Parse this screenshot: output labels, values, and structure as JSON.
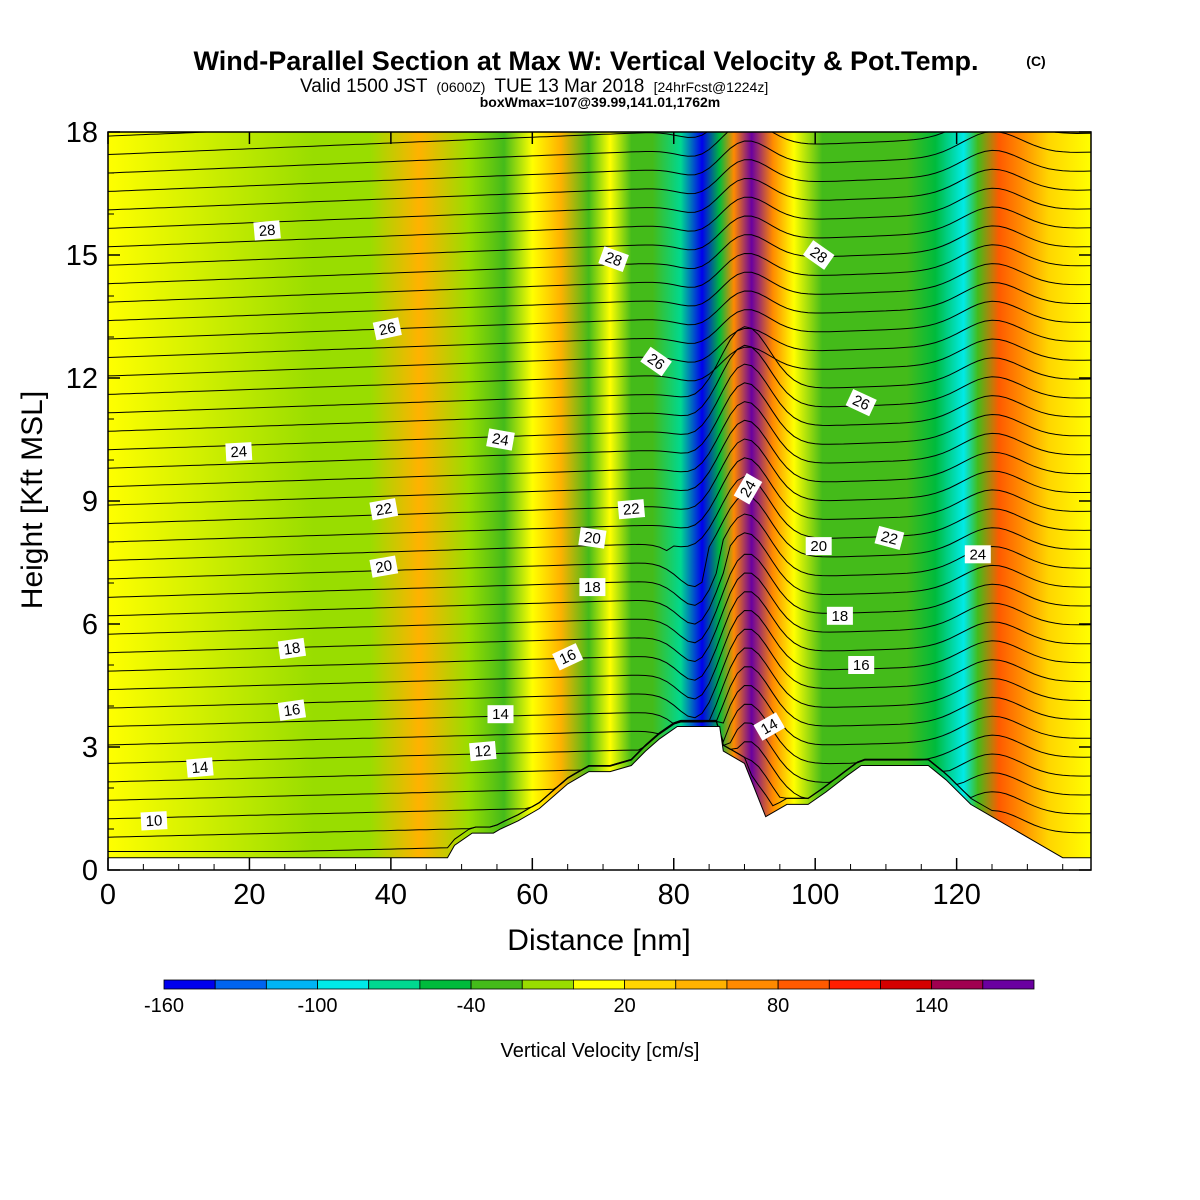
{
  "header": {
    "title": "Wind-Parallel Section at Max W: Vertical Velocity & Pot.Temp.",
    "copyright": "(C)",
    "valid_prefix": "Valid 1500 JST",
    "valid_zulu": "(0600Z)",
    "valid_date": "TUE 13 Mar 2018",
    "forecast": "[24hrFcst@1224z]",
    "boxwmax": "boxWmax=107@39.99,141.01,1762m"
  },
  "chart_data": {
    "type": "heatmap",
    "xlabel": "Distance [nm]",
    "ylabel": "Height [Kft MSL]",
    "xlim": [
      0,
      139
    ],
    "ylim": [
      0,
      18
    ],
    "x_ticks": [
      0,
      20,
      40,
      60,
      80,
      100,
      120
    ],
    "y_ticks": [
      0,
      3,
      6,
      9,
      12,
      15,
      18
    ],
    "x_tick_labels": [
      "0",
      "20",
      "40",
      "60",
      "80",
      "100",
      "120"
    ],
    "y_tick_labels": [
      "0",
      "3",
      "6",
      "9",
      "12",
      "15",
      "18"
    ],
    "grid": false,
    "colorbar": {
      "label": "Vertical Velocity [cm/s]",
      "tick_labels": [
        "-160",
        "-100",
        "-40",
        "20",
        "80",
        "140"
      ],
      "tick_values": [
        -160,
        -100,
        -40,
        20,
        80,
        140
      ],
      "min": -160,
      "max": 180,
      "step": 20,
      "colors": [
        "#0000ee",
        "#0064f0",
        "#00b4f5",
        "#00eae8",
        "#00d890",
        "#00bb3c",
        "#44bb1a",
        "#99dd00",
        "#ffff00",
        "#ffd500",
        "#ffb200",
        "#ff8a00",
        "#ff5a00",
        "#ff1e00",
        "#d40000",
        "#a00050",
        "#6a00a0"
      ]
    },
    "vertical_velocity_bands": [
      {
        "x": 0,
        "w": 10
      },
      {
        "x": 29,
        "w": -20
      },
      {
        "x": 37,
        "w": -10
      },
      {
        "x": 44,
        "w": 40
      },
      {
        "x": 51,
        "w": -10
      },
      {
        "x": 56,
        "w": -30
      },
      {
        "x": 60,
        "w": 0
      },
      {
        "x": 64,
        "w": 40
      },
      {
        "x": 68,
        "w": -30
      },
      {
        "x": 71,
        "w": 10
      },
      {
        "x": 74,
        "w": -25
      },
      {
        "x": 77,
        "w": -40
      },
      {
        "x": 81,
        "w": -80
      },
      {
        "x": 84,
        "w": -150
      },
      {
        "x": 86.5,
        "w": -60
      },
      {
        "x": 88.5,
        "w": 60
      },
      {
        "x": 91,
        "w": 160
      },
      {
        "x": 94,
        "w": 60
      },
      {
        "x": 97,
        "w": 0
      },
      {
        "x": 101,
        "w": -35
      },
      {
        "x": 107,
        "w": -25
      },
      {
        "x": 113,
        "w": -30
      },
      {
        "x": 117,
        "w": -45
      },
      {
        "x": 121,
        "w": -90
      },
      {
        "x": 123,
        "w": -40
      },
      {
        "x": 126,
        "w": 90
      },
      {
        "x": 129,
        "w": 60
      },
      {
        "x": 133,
        "w": 30
      },
      {
        "x": 139,
        "w": 10
      }
    ],
    "terrain": [
      {
        "x": 0,
        "h": 0.3
      },
      {
        "x": 48,
        "h": 0.3
      },
      {
        "x": 49,
        "h": 0.6
      },
      {
        "x": 51.5,
        "h": 0.9
      },
      {
        "x": 54.5,
        "h": 0.9
      },
      {
        "x": 55.5,
        "h": 1.0
      },
      {
        "x": 58,
        "h": 1.2
      },
      {
        "x": 61,
        "h": 1.5
      },
      {
        "x": 63,
        "h": 1.8
      },
      {
        "x": 65,
        "h": 2.1
      },
      {
        "x": 68,
        "h": 2.4
      },
      {
        "x": 71,
        "h": 2.4
      },
      {
        "x": 74,
        "h": 2.55
      },
      {
        "x": 76,
        "h": 2.9
      },
      {
        "x": 78,
        "h": 3.2
      },
      {
        "x": 80.5,
        "h": 3.5
      },
      {
        "x": 86.5,
        "h": 3.5
      },
      {
        "x": 87,
        "h": 2.9
      },
      {
        "x": 90,
        "h": 2.6
      },
      {
        "x": 93,
        "h": 1.3
      },
      {
        "x": 96,
        "h": 1.6
      },
      {
        "x": 99,
        "h": 1.6
      },
      {
        "x": 101.5,
        "h": 1.9
      },
      {
        "x": 104.5,
        "h": 2.3
      },
      {
        "x": 106.5,
        "h": 2.55
      },
      {
        "x": 116,
        "h": 2.55
      },
      {
        "x": 118.5,
        "h": 2.2
      },
      {
        "x": 122,
        "h": 1.6
      },
      {
        "x": 125,
        "h": 1.3
      },
      {
        "x": 128,
        "h": 1.0
      },
      {
        "x": 132,
        "h": 0.6
      },
      {
        "x": 135,
        "h": 0.3
      },
      {
        "x": 139,
        "h": 0.3
      }
    ],
    "contour_labels": [
      {
        "text": "28",
        "x": 22.5,
        "y": 15.6,
        "angle": -5
      },
      {
        "text": "28",
        "x": 71.5,
        "y": 14.9,
        "angle": 20
      },
      {
        "text": "28",
        "x": 100.5,
        "y": 15.0,
        "angle": 35
      },
      {
        "text": "26",
        "x": 39.5,
        "y": 13.2,
        "angle": -12
      },
      {
        "text": "26",
        "x": 77.5,
        "y": 12.4,
        "angle": 35
      },
      {
        "text": "26",
        "x": 106.5,
        "y": 11.4,
        "angle": 25
      },
      {
        "text": "24",
        "x": 18.5,
        "y": 10.2,
        "angle": -3
      },
      {
        "text": "24",
        "x": 55.5,
        "y": 10.5,
        "angle": 10
      },
      {
        "text": "24",
        "x": 90.5,
        "y": 9.3,
        "angle": -60
      },
      {
        "text": "24",
        "x": 123,
        "y": 7.7,
        "angle": 0
      },
      {
        "text": "22",
        "x": 39,
        "y": 8.8,
        "angle": -10
      },
      {
        "text": "22",
        "x": 74,
        "y": 8.8,
        "angle": -5
      },
      {
        "text": "22",
        "x": 110.5,
        "y": 8.1,
        "angle": 15
      },
      {
        "text": "20",
        "x": 39,
        "y": 7.4,
        "angle": -10
      },
      {
        "text": "20",
        "x": 68.5,
        "y": 8.1,
        "angle": 8
      },
      {
        "text": "20",
        "x": 100.5,
        "y": 7.9,
        "angle": 0
      },
      {
        "text": "18",
        "x": 26,
        "y": 5.4,
        "angle": -8
      },
      {
        "text": "18",
        "x": 68.5,
        "y": 6.9,
        "angle": 0
      },
      {
        "text": "18",
        "x": 103.5,
        "y": 6.2,
        "angle": 0
      },
      {
        "text": "16",
        "x": 26,
        "y": 3.9,
        "angle": -8
      },
      {
        "text": "16",
        "x": 65,
        "y": 5.2,
        "angle": -25
      },
      {
        "text": "16",
        "x": 106.5,
        "y": 5.0,
        "angle": 0
      },
      {
        "text": "14",
        "x": 13,
        "y": 2.5,
        "angle": -5
      },
      {
        "text": "14",
        "x": 55.5,
        "y": 3.8,
        "angle": 0
      },
      {
        "text": "14",
        "x": 93.5,
        "y": 3.5,
        "angle": -30
      },
      {
        "text": "12",
        "x": 53,
        "y": 2.9,
        "angle": -5
      },
      {
        "text": "10",
        "x": 6.5,
        "y": 1.2,
        "angle": -3
      }
    ]
  }
}
